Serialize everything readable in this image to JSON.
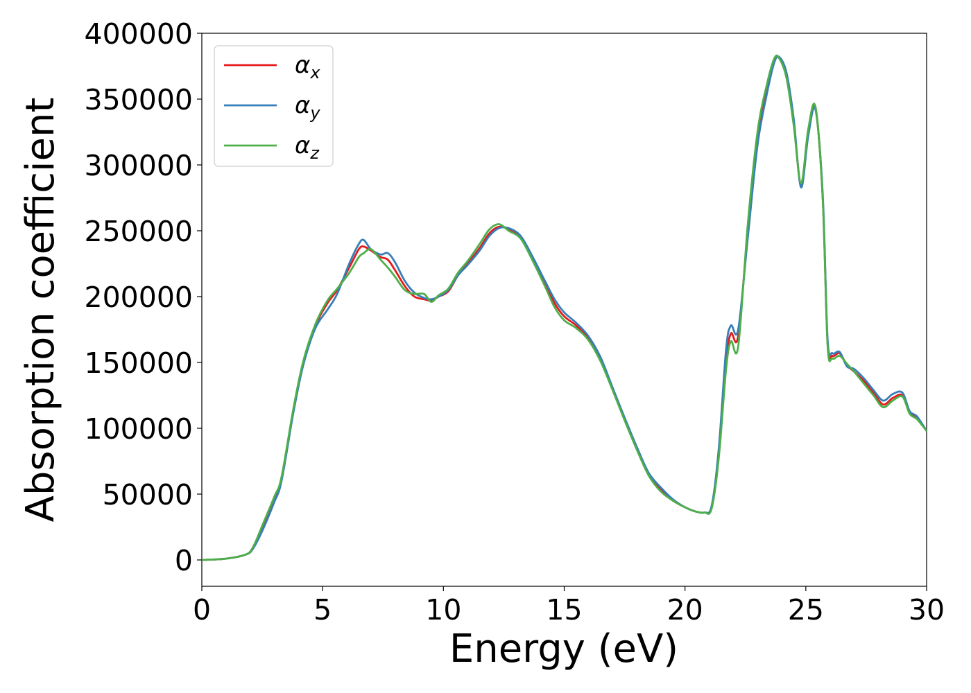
{
  "chart_data": {
    "type": "line",
    "title": "",
    "xlabel": "Energy (eV)",
    "ylabel": "Absorption coefficient",
    "xlim": [
      0,
      30
    ],
    "ylim": [
      -20000,
      400000
    ],
    "xticks": [
      0,
      5,
      10,
      15,
      20,
      25,
      30
    ],
    "xtick_labels": [
      "0",
      "5",
      "10",
      "15",
      "20",
      "25",
      "30"
    ],
    "yticks": [
      0,
      50000,
      100000,
      150000,
      200000,
      250000,
      300000,
      350000,
      400000
    ],
    "ytick_labels": [
      "0",
      "50000",
      "100000",
      "150000",
      "200000",
      "250000",
      "300000",
      "350000",
      "400000"
    ],
    "grid": false,
    "legend": {
      "position": "top-left",
      "entries": [
        {
          "symbol": "α",
          "subscript": "x"
        },
        {
          "symbol": "α",
          "subscript": "y"
        },
        {
          "symbol": "α",
          "subscript": "z"
        }
      ]
    },
    "series": [
      {
        "color": "#e41a1c",
        "x": [
          0,
          1,
          1.8,
          2.1,
          2.5,
          3,
          3.3,
          3.8,
          4.2,
          4.7,
          5.2,
          5.6,
          6.1,
          6.5,
          6.7,
          7.0,
          7.4,
          7.7,
          8.0,
          8.4,
          8.8,
          9.2,
          9.5,
          9.8,
          10.2,
          10.6,
          11.0,
          11.5,
          11.9,
          12.3,
          12.7,
          13.2,
          13.7,
          14.2,
          14.6,
          15.0,
          15.5,
          16.0,
          16.5,
          17.0,
          17.5,
          18.0,
          18.5,
          19.0,
          19.5,
          20.0,
          20.4,
          20.8,
          21.1,
          21.4,
          21.7,
          21.9,
          22.2,
          22.6,
          23.0,
          23.4,
          23.7,
          23.9,
          24.2,
          24.5,
          24.8,
          25.1,
          25.4,
          25.7,
          25.9,
          26.1,
          26.4,
          26.7,
          27.0,
          27.4,
          27.8,
          28.2,
          28.6,
          29.0,
          29.3,
          29.6,
          30.0
        ],
        "values": [
          0,
          1000,
          4000,
          9000,
          25000,
          47000,
          62000,
          115000,
          150000,
          178000,
          195000,
          205000,
          222000,
          236000,
          238000,
          235000,
          230000,
          228000,
          220000,
          208000,
          200000,
          198000,
          197000,
          200000,
          204000,
          216000,
          225000,
          237000,
          248000,
          253000,
          251000,
          245000,
          228000,
          210000,
          195000,
          185000,
          178000,
          168000,
          152000,
          130000,
          107000,
          85000,
          65000,
          53000,
          45000,
          40000,
          37000,
          36000,
          40000,
          80000,
          150000,
          172000,
          170000,
          250000,
          320000,
          360000,
          380000,
          381000,
          368000,
          332000,
          285000,
          325000,
          343000,
          275000,
          165000,
          155000,
          157000,
          148000,
          143000,
          136000,
          127000,
          118000,
          123000,
          125000,
          112000,
          108000,
          98000
        ]
      },
      {
        "color": "#377eb8",
        "x": [
          0,
          1,
          1.8,
          2.1,
          2.5,
          3,
          3.3,
          3.8,
          4.2,
          4.7,
          5.2,
          5.6,
          6.1,
          6.5,
          6.7,
          7.0,
          7.4,
          7.7,
          8.0,
          8.4,
          8.8,
          9.2,
          9.5,
          9.8,
          10.2,
          10.6,
          11.0,
          11.5,
          11.9,
          12.3,
          12.7,
          13.2,
          13.7,
          14.2,
          14.6,
          15.0,
          15.5,
          16.0,
          16.5,
          17.0,
          17.5,
          18.0,
          18.5,
          19.0,
          19.5,
          20.0,
          20.4,
          20.8,
          21.1,
          21.4,
          21.7,
          21.9,
          22.2,
          22.6,
          23.0,
          23.4,
          23.7,
          23.9,
          24.2,
          24.5,
          24.8,
          25.1,
          25.4,
          25.7,
          25.9,
          26.1,
          26.4,
          26.7,
          27.0,
          27.4,
          27.8,
          28.2,
          28.6,
          29.0,
          29.3,
          29.6,
          30.0
        ],
        "values": [
          0,
          1000,
          4000,
          8000,
          22000,
          44000,
          60000,
          113000,
          148000,
          176000,
          190000,
          202000,
          225000,
          240000,
          243000,
          236000,
          232000,
          233000,
          226000,
          212000,
          203000,
          199000,
          198000,
          200000,
          205000,
          216000,
          224000,
          235000,
          246000,
          252000,
          252000,
          246000,
          230000,
          212000,
          198000,
          188000,
          180000,
          170000,
          154000,
          131000,
          108000,
          86000,
          66000,
          55000,
          46000,
          40000,
          37000,
          36000,
          41000,
          85000,
          160000,
          178000,
          175000,
          245000,
          315000,
          355000,
          378000,
          382000,
          370000,
          335000,
          283000,
          322000,
          342000,
          278000,
          168000,
          157000,
          158000,
          147000,
          145000,
          138000,
          129000,
          121000,
          126000,
          127000,
          113000,
          109000,
          98000
        ]
      },
      {
        "color": "#4daf4a",
        "x": [
          0,
          1,
          1.8,
          2.1,
          2.5,
          3,
          3.3,
          3.8,
          4.2,
          4.7,
          5.2,
          5.6,
          6.1,
          6.5,
          6.7,
          7.0,
          7.4,
          7.7,
          8.0,
          8.4,
          8.8,
          9.2,
          9.5,
          9.8,
          10.2,
          10.6,
          11.0,
          11.5,
          11.9,
          12.3,
          12.7,
          13.2,
          13.7,
          14.2,
          14.6,
          15.0,
          15.5,
          16.0,
          16.5,
          17.0,
          17.5,
          18.0,
          18.5,
          19.0,
          19.5,
          20.0,
          20.4,
          20.8,
          21.1,
          21.4,
          21.7,
          21.9,
          22.2,
          22.6,
          23.0,
          23.4,
          23.7,
          23.9,
          24.2,
          24.5,
          24.8,
          25.1,
          25.4,
          25.7,
          25.9,
          26.1,
          26.4,
          26.7,
          27.0,
          27.4,
          27.8,
          28.2,
          28.6,
          29.0,
          29.3,
          29.6,
          30.0
        ],
        "values": [
          0,
          1000,
          4000,
          9000,
          26000,
          48000,
          63000,
          116000,
          151000,
          179000,
          197000,
          206000,
          218000,
          230000,
          233000,
          236000,
          228000,
          222000,
          215000,
          205000,
          202000,
          202000,
          196000,
          201000,
          206000,
          218000,
          227000,
          240000,
          251000,
          255000,
          250000,
          244000,
          227000,
          208000,
          192000,
          182000,
          176000,
          167000,
          151000,
          129000,
          106000,
          84000,
          64000,
          52000,
          45000,
          40000,
          37000,
          36000,
          39000,
          78000,
          145000,
          166000,
          162000,
          255000,
          325000,
          362000,
          381000,
          381000,
          366000,
          330000,
          286000,
          327000,
          344000,
          274000,
          163000,
          153000,
          155000,
          149000,
          143000,
          134000,
          125000,
          116000,
          121000,
          124000,
          111000,
          107000,
          98000
        ]
      }
    ]
  }
}
